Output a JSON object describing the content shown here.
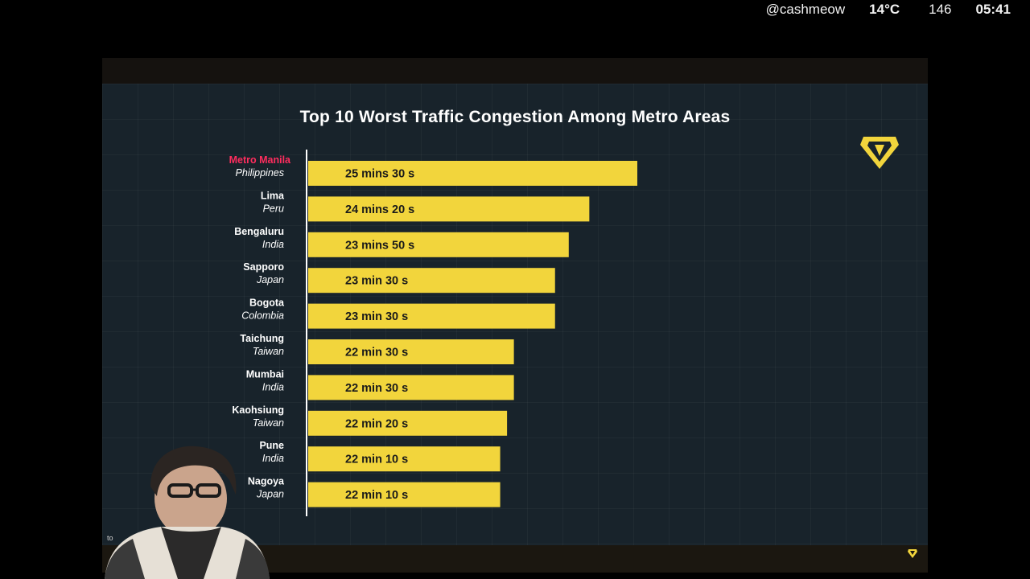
{
  "status_bar": {
    "handle": "@cashmeow",
    "temperature": "14°C",
    "count": "146",
    "time": "05:41"
  },
  "colors": {
    "bar": "#f2d53c",
    "highlight_label": "#ff2d5e",
    "label": "#ffffff",
    "background": "#18232b"
  },
  "icons": {
    "brand_logo": "yellow-diamond-shield-icon",
    "small_logo": "small-diamond-icon"
  },
  "side_text": "to",
  "chart_data": {
    "type": "bar",
    "orientation": "horizontal",
    "title": "Top 10 Worst Traffic Congestion Among Metro Areas",
    "xlabel": "",
    "ylabel": "",
    "unit": "seconds",
    "xlim": [
      0,
      1530
    ],
    "highlight_index": 0,
    "grid": true,
    "categories": [
      {
        "city": "Metro Manila",
        "country": "Philippines"
      },
      {
        "city": "Lima",
        "country": "Peru"
      },
      {
        "city": "Bengaluru",
        "country": "India"
      },
      {
        "city": "Sapporo",
        "country": "Japan"
      },
      {
        "city": "Bogota",
        "country": "Colombia"
      },
      {
        "city": "Taichung",
        "country": "Taiwan"
      },
      {
        "city": "Mumbai",
        "country": "India"
      },
      {
        "city": "Kaohsiung",
        "country": "Taiwan"
      },
      {
        "city": "Pune",
        "country": "India"
      },
      {
        "city": "Nagoya",
        "country": "Japan"
      }
    ],
    "values": [
      1530,
      1460,
      1430,
      1410,
      1410,
      1350,
      1350,
      1340,
      1330,
      1330
    ],
    "value_labels": [
      "25 mins 30 s",
      "24 mins 20 s",
      "23 mins 50 s",
      "23 min 30 s",
      "23 min 30 s",
      "22 min 30 s",
      "22 min 30 s",
      "22 min 20 s",
      "22 min 10 s",
      "22 min 10 s"
    ]
  }
}
